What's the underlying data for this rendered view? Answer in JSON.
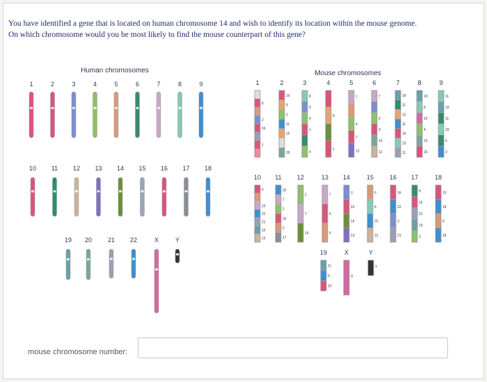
{
  "question": {
    "line1": "You have identified a gene that is located on human chromosome 14 and wish to identify its location within the mouse genome.",
    "line2": "On which chromosome would you be most likely to find the mouse counterpart of this gene?"
  },
  "human": {
    "title": "Human chromosomes",
    "row1": [
      {
        "label": "1",
        "color": "#d9557a"
      },
      {
        "label": "2",
        "color": "#d9557a"
      },
      {
        "label": "3",
        "color": "#7b8fcf"
      },
      {
        "label": "4",
        "color": "#8fc06a"
      },
      {
        "label": "5",
        "color": "#d89a7a"
      },
      {
        "label": "6",
        "color": "#3a8a6e"
      },
      {
        "label": "7",
        "color": "#c9a7c9"
      },
      {
        "label": "8",
        "color": "#88c8b8"
      },
      {
        "label": "9",
        "color": "#3d8fd1"
      }
    ],
    "row2": [
      {
        "label": "10",
        "color": "#d9557a"
      },
      {
        "label": "11",
        "color": "#2f8e6b"
      },
      {
        "label": "12",
        "color": "#c9b39b"
      },
      {
        "label": "13",
        "color": "#7e70c2"
      },
      {
        "label": "14",
        "color": "#6b8f3a"
      },
      {
        "label": "15",
        "color": "#9aa6b5"
      },
      {
        "label": "16",
        "color": "#d9557a"
      },
      {
        "label": "17",
        "color": "#8a8d9a"
      },
      {
        "label": "18",
        "color": "#3d8fd1"
      }
    ],
    "row3": [
      {
        "label": "19",
        "color": "#6aa0a8"
      },
      {
        "label": "20",
        "color": "#79a7a0"
      },
      {
        "label": "21",
        "color": "#9a9fb3"
      },
      {
        "label": "22",
        "color": "#3d8fd1"
      },
      {
        "label": "X",
        "color": "#d16aa0"
      },
      {
        "label": "Y",
        "color": "#333333"
      }
    ]
  },
  "mouse": {
    "title": "Mouse chromosomes",
    "row1": [
      {
        "label": "1",
        "segments": [
          {
            "n": "",
            "c": "#dddddd"
          },
          {
            "n": "6",
            "c": "#d9557a"
          },
          {
            "n": "",
            "c": "#d89a7a"
          },
          {
            "n": "2",
            "c": "#7b8fcf"
          },
          {
            "n": "16",
            "c": "#d9557a"
          },
          {
            "n": "",
            "c": "#9a9fb3"
          },
          {
            "n": "1",
            "c": "#d9557a"
          },
          {
            "n": "",
            "c": "#ee8a9a"
          }
        ]
      },
      {
        "label": "2",
        "segments": [
          {
            "n": "10",
            "c": "#d9557a"
          },
          {
            "n": "9",
            "c": "#e8a46e"
          },
          {
            "n": "2",
            "c": "#8fc06a"
          },
          {
            "n": "11",
            "c": "#3d8fd1"
          },
          {
            "n": "15",
            "c": "#e8a46e"
          },
          {
            "n": "",
            "c": "#dddddd"
          },
          {
            "n": "20",
            "c": "#79a7a0"
          }
        ]
      },
      {
        "label": "3",
        "segments": [
          {
            "n": "8",
            "c": "#88c8b8"
          },
          {
            "n": "3",
            "c": "#7b8fcf"
          },
          {
            "n": "4",
            "c": "#8fc06a"
          },
          {
            "n": "1",
            "c": "#d9557a"
          },
          {
            "n": "",
            "c": "#3a8a6e"
          },
          {
            "n": "4",
            "c": "#8fc06a"
          }
        ]
      },
      {
        "label": "4",
        "segments": [
          {
            "n": "",
            "c": "#d9557a"
          },
          {
            "n": "9",
            "c": "#e8a46e"
          },
          {
            "n": "",
            "c": "#6b8f3a"
          },
          {
            "n": "1",
            "c": "#d9557a"
          }
        ]
      },
      {
        "label": "5",
        "segments": [
          {
            "n": "7",
            "c": "#c9a7c9"
          },
          {
            "n": "",
            "c": "#d89a7a"
          },
          {
            "n": "4",
            "c": "#8fc06a"
          },
          {
            "n": "7",
            "c": "#d9557a"
          },
          {
            "n": "13",
            "c": "#7e70c2"
          }
        ]
      },
      {
        "label": "6",
        "segments": [
          {
            "n": "7",
            "c": "#c9a7c9"
          },
          {
            "n": "",
            "c": "#7b8fcf"
          },
          {
            "n": "2",
            "c": "#8fc06a"
          },
          {
            "n": "3",
            "c": "#d9557a"
          },
          {
            "n": "10",
            "c": "#79a7a0"
          },
          {
            "n": "12",
            "c": "#c9b39b"
          }
        ]
      },
      {
        "label": "7",
        "segments": [
          {
            "n": "19",
            "c": "#6aa0a8"
          },
          {
            "n": "11",
            "c": "#2f8e6b"
          },
          {
            "n": "15",
            "c": "#e8a46e"
          },
          {
            "n": "11",
            "c": "#3d8fd1"
          },
          {
            "n": "16",
            "c": "#d9557a"
          },
          {
            "n": "10",
            "c": "#88c8b8"
          },
          {
            "n": "11",
            "c": "#9a9fb3"
          }
        ]
      },
      {
        "label": "8",
        "segments": [
          {
            "n": "19",
            "c": "#6aa0a8"
          },
          {
            "n": "8",
            "c": "#88c8b8"
          },
          {
            "n": "19",
            "c": "#d16aa0"
          },
          {
            "n": "4",
            "c": "#8fc06a"
          },
          {
            "n": "19",
            "c": "#79a7a0"
          },
          {
            "n": "16",
            "c": "#d9557a"
          }
        ]
      },
      {
        "label": "9",
        "segments": [
          {
            "n": "11",
            "c": "#88c8b8"
          },
          {
            "n": "19",
            "c": "#6aa0a8"
          },
          {
            "n": "11",
            "c": "#3a8a6e"
          },
          {
            "n": "15",
            "c": "#88c8b8"
          },
          {
            "n": "6",
            "c": "#3a8a6e"
          },
          {
            "n": "3",
            "c": "#3d8fd1"
          }
        ]
      }
    ],
    "row2": [
      {
        "label": "10",
        "segments": [
          {
            "n": "6",
            "c": "#d9557a"
          },
          {
            "n": "",
            "c": "#d89a7a"
          },
          {
            "n": "10",
            "c": "#c9a7c9"
          },
          {
            "n": "22",
            "c": "#3d8fd1"
          },
          {
            "n": "21",
            "c": "#9a9fb3"
          },
          {
            "n": "19",
            "c": "#6aa0a8"
          },
          {
            "n": "12",
            "c": "#c9b39b"
          }
        ]
      },
      {
        "label": "11",
        "segments": [
          {
            "n": "22",
            "c": "#3d8fd1"
          },
          {
            "n": "7",
            "c": "#c9a7c9"
          },
          {
            "n": "2",
            "c": "#8fc06a"
          },
          {
            "n": "16",
            "c": "#d9557a"
          },
          {
            "n": "5",
            "c": "#d89a7a"
          },
          {
            "n": "17",
            "c": "#8a8d9a"
          }
        ]
      },
      {
        "label": "12",
        "segments": [
          {
            "n": "2",
            "c": "#8fc06a"
          },
          {
            "n": "7",
            "c": "#c9a7c9"
          },
          {
            "n": "14",
            "c": "#6b8f3a"
          }
        ]
      },
      {
        "label": "13",
        "segments": [
          {
            "n": "7",
            "c": "#c9a7c9"
          },
          {
            "n": "6",
            "c": "#d9557a"
          },
          {
            "n": "5",
            "c": "#d89a7a"
          }
        ]
      },
      {
        "label": "14",
        "segments": [
          {
            "n": "3",
            "c": "#7b8fcf"
          },
          {
            "n": "10",
            "c": "#d9557a"
          },
          {
            "n": "14",
            "c": "#6b8f3a"
          },
          {
            "n": "13",
            "c": "#7e70c2"
          }
        ]
      },
      {
        "label": "15",
        "segments": [
          {
            "n": "5",
            "c": "#d89a7a"
          },
          {
            "n": "8",
            "c": "#88c8b8"
          },
          {
            "n": "22",
            "c": "#3d8fd1"
          },
          {
            "n": "12",
            "c": "#c9b39b"
          }
        ]
      },
      {
        "label": "16",
        "segments": [
          {
            "n": "16",
            "c": "#d9557a"
          },
          {
            "n": "22",
            "c": "#3d8fd1"
          },
          {
            "n": "3",
            "c": "#7b8fcf"
          },
          {
            "n": "21",
            "c": "#9a9fb3"
          }
        ]
      },
      {
        "label": "17",
        "segments": [
          {
            "n": "6",
            "c": "#3a8a6e"
          },
          {
            "n": "16",
            "c": "#d9557a"
          },
          {
            "n": "21",
            "c": "#9a9fb3"
          },
          {
            "n": "19",
            "c": "#6aa0a8"
          },
          {
            "n": "2",
            "c": "#8fc06a"
          }
        ]
      },
      {
        "label": "18",
        "segments": [
          {
            "n": "10",
            "c": "#d9557a"
          },
          {
            "n": "18",
            "c": "#3d8fd1"
          },
          {
            "n": "5",
            "c": "#d89a7a"
          },
          {
            "n": "18",
            "c": "#3d8fd1"
          }
        ]
      }
    ],
    "row3": [
      {
        "label": "19",
        "segments": [
          {
            "n": "11",
            "c": "#6aa0a8"
          },
          {
            "n": "9",
            "c": "#3d8fd1"
          },
          {
            "n": "10",
            "c": "#d9557a"
          }
        ]
      },
      {
        "label": "X",
        "segments": [
          {
            "n": "X",
            "c": "#d16aa0"
          }
        ]
      },
      {
        "label": "Y",
        "segments": [
          {
            "n": "Y",
            "c": "#333333"
          }
        ]
      }
    ]
  },
  "answer": {
    "label": "mouse chromosome number:",
    "value": "",
    "placeholder": ""
  }
}
